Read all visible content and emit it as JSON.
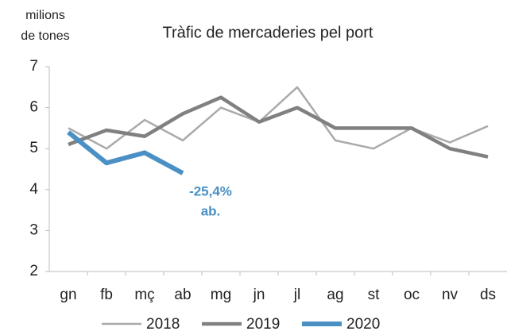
{
  "chart_data": {
    "type": "line",
    "title": "Tràfic de mercaderies pel port",
    "ylabel": [
      "milions",
      "de tones"
    ],
    "categories": [
      "gn",
      "fb",
      "mç",
      "ab",
      "mg",
      "jn",
      "jl",
      "ag",
      "st",
      "oc",
      "nv",
      "ds"
    ],
    "series": [
      {
        "name": "2018",
        "color": "#aaaaaa",
        "values": [
          5.5,
          5.0,
          5.7,
          5.2,
          6.0,
          5.65,
          6.5,
          5.2,
          5.0,
          5.5,
          5.15,
          5.55
        ]
      },
      {
        "name": "2019",
        "color": "#808080",
        "values": [
          5.1,
          5.45,
          5.3,
          5.85,
          6.25,
          5.65,
          6.0,
          5.5,
          5.5,
          5.5,
          5.0,
          4.8
        ]
      },
      {
        "name": "2020",
        "color": "#4a90c4",
        "values": [
          5.4,
          4.65,
          4.9,
          4.4,
          null,
          null,
          null,
          null,
          null,
          null,
          null,
          null
        ]
      }
    ],
    "annotation": [
      "-25,4%",
      "ab."
    ],
    "ylim": [
      2,
      7
    ],
    "yticks": [
      2,
      3,
      4,
      5,
      6,
      7
    ],
    "grid": false,
    "legend": "bottom"
  }
}
